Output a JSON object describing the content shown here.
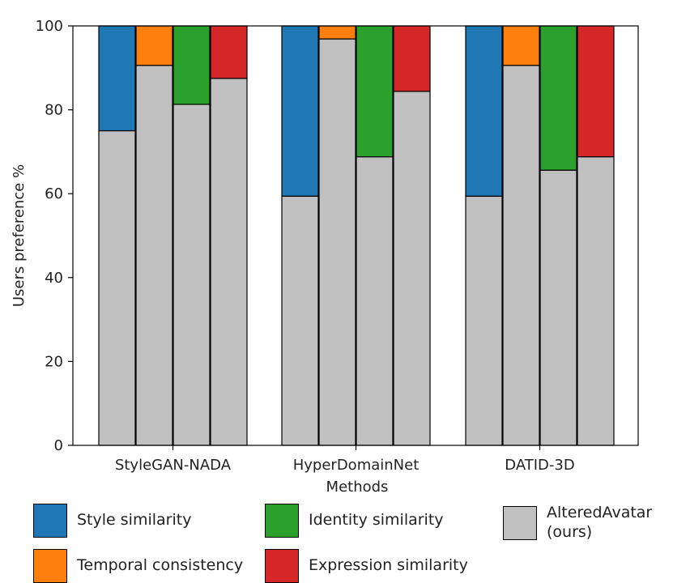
{
  "chart_data": {
    "type": "bar",
    "style": "stacked",
    "title": "",
    "xlabel": "Methods",
    "ylabel": "Users preference %",
    "ylim": [
      0,
      100
    ],
    "yticks": [
      0,
      20,
      40,
      60,
      80,
      100
    ],
    "categories": [
      "StyleGAN-NADA",
      "HyperDomainNet",
      "DATID-3D"
    ],
    "comparisons": [
      {
        "key": "style",
        "name": "Style similarity",
        "color": "#1f77b4"
      },
      {
        "key": "temporal",
        "name": "Temporal consistency",
        "color": "#ff7f0e"
      },
      {
        "key": "identity",
        "name": "Identity similarity",
        "color": "#2ca02c"
      },
      {
        "key": "expression",
        "name": "Expression similarity",
        "color": "#d62728"
      }
    ],
    "ours": {
      "name": "AlteredAvatar\n(ours)",
      "color": "#c0c0c0"
    },
    "ours_values": {
      "StyleGAN-NADA": [
        75,
        90.6,
        81.3,
        87.5
      ],
      "HyperDomainNet": [
        59.4,
        96.9,
        68.8,
        84.4
      ],
      "DATID-3D": [
        59.4,
        90.6,
        65.6,
        68.8
      ]
    },
    "legend_location": "below"
  }
}
